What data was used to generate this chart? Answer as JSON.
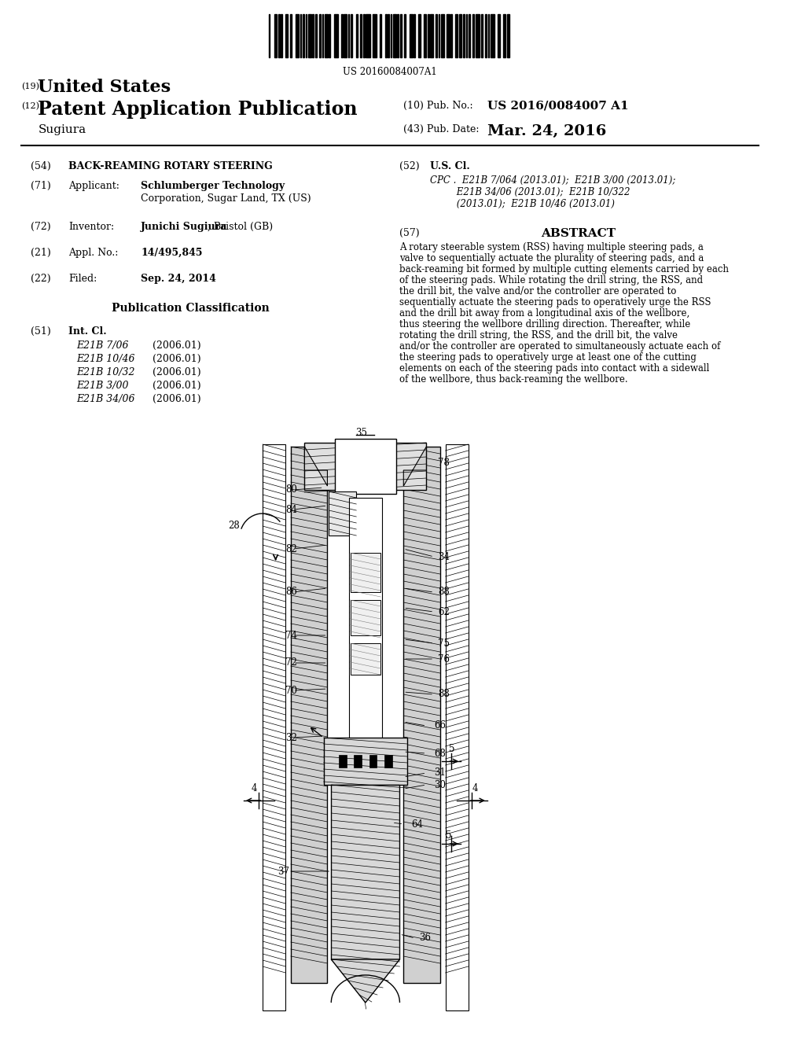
{
  "background_color": "#ffffff",
  "barcode_text": "US 20160084007A1",
  "patent_number_label": "(19)",
  "patent_title": "United States",
  "pub_label": "(12)",
  "pub_title": "Patent Application Publication",
  "pub_number_label": "(10) Pub. No.:",
  "pub_number": "US 2016/0084007 A1",
  "inventor_surname": "Sugiura",
  "pub_date_label": "(43) Pub. Date:",
  "pub_date": "Mar. 24, 2016",
  "field54_label": "(54)",
  "field54": "BACK-REAMING ROTARY STEERING",
  "field71_label": "(71)",
  "field71_key": "Applicant:",
  "field71_val1": "Schlumberger Technology",
  "field71_val2": "Corporation, Sugar Land, TX (US)",
  "field72_label": "(72)",
  "field72_key": "Inventor:",
  "field72_val": "Junichi Sugiura, Bristol (GB)",
  "field21_label": "(21)",
  "field21_key": "Appl. No.:",
  "field21_val": "14/495,845",
  "field22_label": "(22)",
  "field22_key": "Filed:",
  "field22_val": "Sep. 24, 2014",
  "pub_class_title": "Publication Classification",
  "field51_label": "(51)",
  "field51_key": "Int. Cl.",
  "int_cl_entries": [
    [
      "E21B 7/06",
      "(2006.01)"
    ],
    [
      "E21B 10/46",
      "(2006.01)"
    ],
    [
      "E21B 10/32",
      "(2006.01)"
    ],
    [
      "E21B 3/00",
      "(2006.01)"
    ],
    [
      "E21B 34/06",
      "(2006.01)"
    ]
  ],
  "field52_label": "(52)",
  "field52_key": "U.S. Cl.",
  "cpc_text": "CPC . E21B 7/064 (2013.01); E21B 3/00 (2013.01); E21B 34/06 (2013.01); E21B 10/322 (2013.01); E21B 10/46 (2013.01)",
  "field57_label": "(57)",
  "field57_key": "ABSTRACT",
  "abstract": "A rotary steerable system (RSS) having multiple steering pads, a valve to sequentially actuate the plurality of steering pads, and a back-reaming bit formed by multiple cutting elements carried by each of the steering pads. While rotating the drill string, the RSS, and the drill bit, the valve and/or the controller are operated to sequentially actuate the steering pads to operatively urge the RSS and the drill bit away from a longitudinal axis of the wellbore, thus steering the wellbore drilling direction. Thereafter, while rotating the drill string, the RSS, and the drill bit, the valve and/or the controller are operated to simultaneously actuate each of the steering pads to operatively urge at least one of the cutting elements on each of the steering pads into contact with a sidewall of the wellbore, thus back-reaming the wellbore."
}
